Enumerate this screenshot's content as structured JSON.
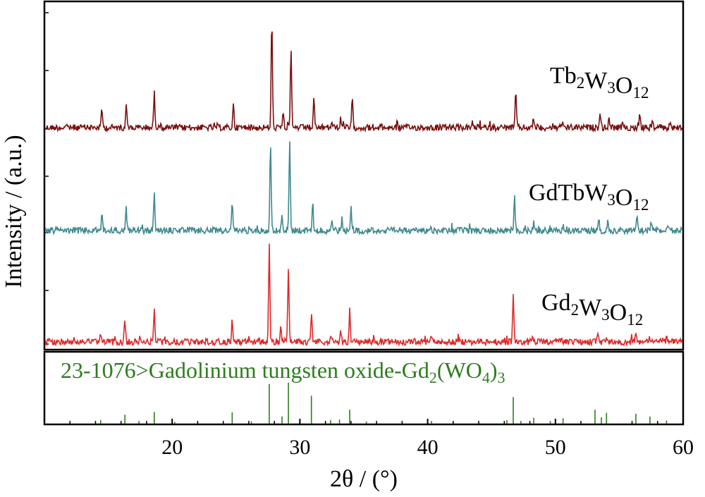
{
  "chart_data": {
    "type": "line",
    "title": "",
    "xlabel": "2θ / (°)",
    "ylabel": "Intensity / (a.u.)",
    "xlim": [
      10,
      60
    ],
    "xticks": [
      20,
      30,
      40,
      50,
      60
    ],
    "grid": false,
    "series": [
      {
        "name": "Tb₂W₃O₁₂",
        "label_main": [
          "Tb",
          "W",
          "O"
        ],
        "label_subs": [
          "2",
          "3",
          "12"
        ],
        "color": "#7a1010",
        "peaks": [
          [
            14.5,
            0.17
          ],
          [
            16.4,
            0.22
          ],
          [
            18.6,
            0.33
          ],
          [
            24.8,
            0.22
          ],
          [
            27.8,
            1.0
          ],
          [
            28.7,
            0.14
          ],
          [
            29.3,
            0.74
          ],
          [
            31.1,
            0.26
          ],
          [
            32.5,
            0.06
          ],
          [
            33.2,
            0.08
          ],
          [
            34.1,
            0.26
          ],
          [
            46.9,
            0.34
          ],
          [
            48.3,
            0.09
          ],
          [
            50.6,
            0.05
          ],
          [
            53.5,
            0.14
          ],
          [
            54.2,
            0.08
          ],
          [
            56.6,
            0.11
          ],
          [
            57.6,
            0.05
          ],
          [
            59.0,
            0.05
          ]
        ]
      },
      {
        "name": "GdTbW₃O₁₂",
        "label_main": [
          "GdTbW",
          "O"
        ],
        "label_subs": [
          "3",
          "12"
        ],
        "color": "#3f8a8f",
        "peaks": [
          [
            14.5,
            0.17
          ],
          [
            16.4,
            0.26
          ],
          [
            17.6,
            0.06
          ],
          [
            18.6,
            0.41
          ],
          [
            24.7,
            0.29
          ],
          [
            27.7,
            0.96
          ],
          [
            28.6,
            0.17
          ],
          [
            29.2,
            1.0
          ],
          [
            31.0,
            0.28
          ],
          [
            32.5,
            0.09
          ],
          [
            33.3,
            0.13
          ],
          [
            34.0,
            0.28
          ],
          [
            46.8,
            0.36
          ],
          [
            48.3,
            0.08
          ],
          [
            50.6,
            0.05
          ],
          [
            53.4,
            0.1
          ],
          [
            54.1,
            0.07
          ],
          [
            56.4,
            0.15
          ],
          [
            57.5,
            0.1
          ],
          [
            58.8,
            0.06
          ]
        ]
      },
      {
        "name": "Gd₂W₃O₁₂",
        "label_main": [
          "Gd",
          "W",
          "O"
        ],
        "label_subs": [
          "2",
          "3",
          "12"
        ],
        "color": "#e02828",
        "peaks": [
          [
            14.4,
            0.1
          ],
          [
            16.3,
            0.19
          ],
          [
            17.5,
            0.05
          ],
          [
            18.6,
            0.35
          ],
          [
            24.7,
            0.24
          ],
          [
            27.6,
            1.0
          ],
          [
            28.5,
            0.13
          ],
          [
            29.1,
            0.74
          ],
          [
            30.9,
            0.3
          ],
          [
            32.4,
            0.07
          ],
          [
            33.2,
            0.1
          ],
          [
            33.9,
            0.32
          ],
          [
            40.3,
            0.05
          ],
          [
            46.7,
            0.42
          ],
          [
            48.2,
            0.07
          ],
          [
            50.5,
            0.05
          ],
          [
            53.3,
            0.07
          ],
          [
            54.0,
            0.06
          ],
          [
            56.3,
            0.1
          ],
          [
            57.4,
            0.05
          ],
          [
            58.7,
            0.05
          ]
        ]
      }
    ],
    "reference": {
      "label_text": "23-1076>Gadolinium tungsten oxide-Gd",
      "label_sub1": "2",
      "label_mid": "(WO",
      "label_sub2": "4",
      "label_close": ")",
      "label_sub3": "3",
      "color": "#2e7d1e",
      "lines": [
        [
          14.4,
          0.08
        ],
        [
          16.3,
          0.2
        ],
        [
          17.4,
          0.06
        ],
        [
          18.6,
          0.26
        ],
        [
          20.2,
          0.04
        ],
        [
          24.7,
          0.25
        ],
        [
          26.2,
          0.05
        ],
        [
          27.6,
          0.88
        ],
        [
          28.6,
          0.16
        ],
        [
          29.1,
          0.91
        ],
        [
          30.9,
          0.62
        ],
        [
          32.4,
          0.08
        ],
        [
          33.1,
          0.09
        ],
        [
          33.9,
          0.31
        ],
        [
          35.2,
          0.05
        ],
        [
          40.3,
          0.06
        ],
        [
          46.2,
          0.08
        ],
        [
          46.7,
          0.59
        ],
        [
          47.3,
          0.06
        ],
        [
          48.3,
          0.13
        ],
        [
          49.6,
          0.06
        ],
        [
          50.6,
          0.12
        ],
        [
          53.1,
          0.31
        ],
        [
          53.6,
          0.14
        ],
        [
          54.0,
          0.24
        ],
        [
          56.3,
          0.22
        ],
        [
          57.4,
          0.16
        ],
        [
          58.7,
          0.07
        ]
      ]
    }
  }
}
